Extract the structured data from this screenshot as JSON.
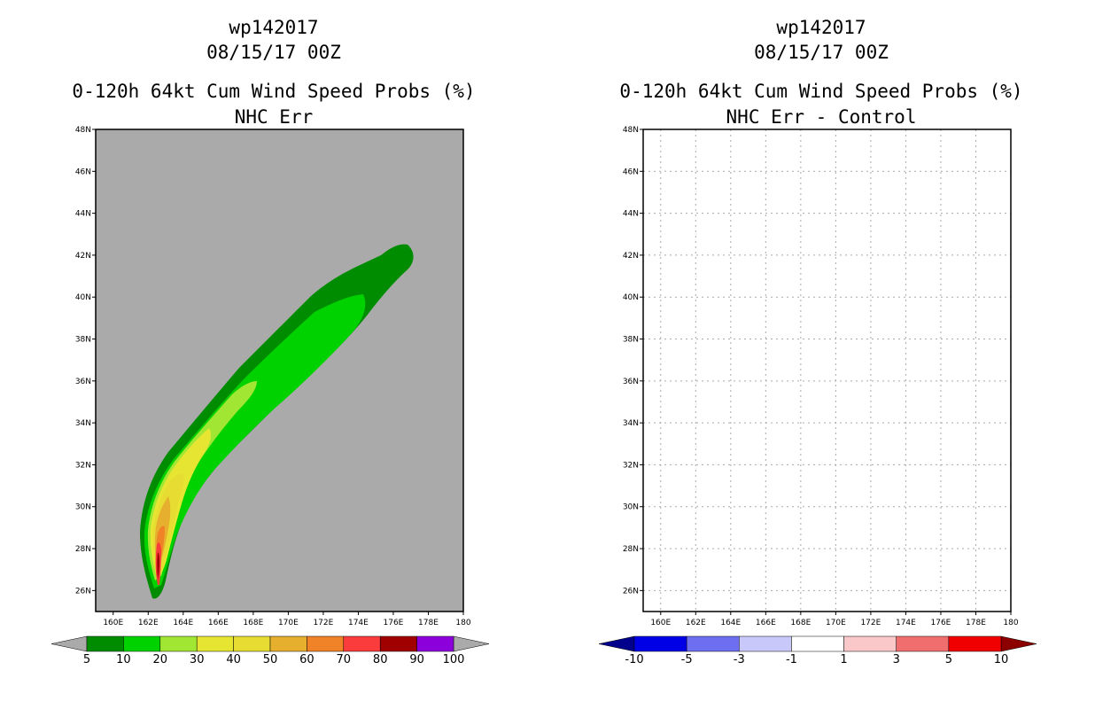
{
  "chart_data": [
    {
      "type": "heatmap",
      "title_lines": [
        "wp142017",
        "08/15/17 00Z"
      ],
      "subtitle_lines": [
        "0-120h 64kt Cum Wind Speed Probs (%)",
        "NHC Err"
      ],
      "x_ticks": [
        "160E",
        "162E",
        "164E",
        "166E",
        "168E",
        "170E",
        "172E",
        "174E",
        "176E",
        "178E",
        "180"
      ],
      "y_ticks": [
        "26N",
        "28N",
        "30N",
        "32N",
        "34N",
        "36N",
        "38N",
        "40N",
        "42N",
        "44N",
        "46N",
        "48N"
      ],
      "xlim": [
        159,
        180
      ],
      "ylim": [
        25,
        48
      ],
      "grid": false,
      "background": "#aaaaaa",
      "colorbar": {
        "labels": [
          "5",
          "10",
          "20",
          "30",
          "40",
          "50",
          "60",
          "70",
          "80",
          "90",
          "100"
        ],
        "colors": [
          "#008c00",
          "#00d200",
          "#a0e632",
          "#e6e632",
          "#e6dc32",
          "#e6af2d",
          "#f08228",
          "#fa3c3c",
          "#a00000",
          "#8c00dc"
        ],
        "under_color": "#aaaaaa",
        "over_color": "#aaaaaa"
      }
    },
    {
      "type": "heatmap",
      "title_lines": [
        "wp142017",
        "08/15/17 00Z"
      ],
      "subtitle_lines": [
        "0-120h 64kt Cum Wind Speed Probs (%)",
        "NHC Err - Control"
      ],
      "x_ticks": [
        "160E",
        "162E",
        "164E",
        "166E",
        "168E",
        "170E",
        "172E",
        "174E",
        "176E",
        "178E",
        "180"
      ],
      "y_ticks": [
        "26N",
        "28N",
        "30N",
        "32N",
        "34N",
        "36N",
        "38N",
        "40N",
        "42N",
        "44N",
        "46N",
        "48N"
      ],
      "xlim": [
        159,
        180
      ],
      "ylim": [
        25,
        48
      ],
      "grid": true,
      "background": "#ffffff",
      "colorbar": {
        "labels": [
          "-10",
          "-5",
          "-3",
          "-1",
          "1",
          "3",
          "5",
          "10"
        ],
        "colors": [
          "#0000e6",
          "#6e6ef0",
          "#c8c8fa",
          "#ffffff",
          "#fac8c8",
          "#f06e6e",
          "#f00000"
        ],
        "under_color": "#00008c",
        "over_color": "#8c0000"
      }
    }
  ]
}
